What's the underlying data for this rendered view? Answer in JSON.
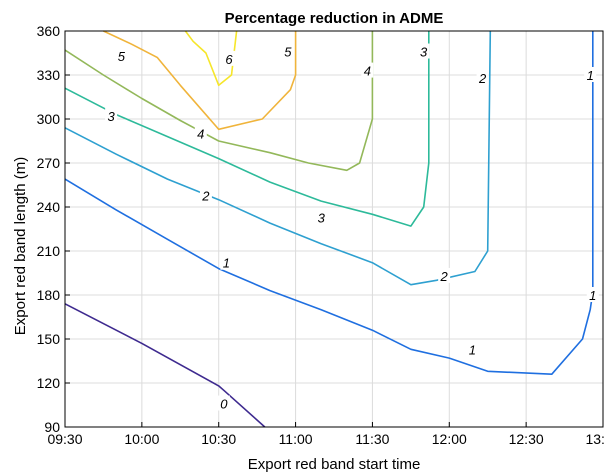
{
  "chart_data": {
    "type": "contour",
    "title": "Percentage reduction in ADME",
    "xlabel": "Export red band start time",
    "ylabel": "Export red band length (m)",
    "x_ticks": [
      "09:30",
      "10:00",
      "10:30",
      "11:00",
      "11:30",
      "12:00",
      "12:30",
      "13:00"
    ],
    "x_range_minutes": [
      570,
      780
    ],
    "y_ticks": [
      90,
      120,
      150,
      180,
      210,
      240,
      270,
      300,
      330,
      360
    ],
    "ylim": [
      90,
      360
    ],
    "grid": true,
    "contours": [
      {
        "level": "0",
        "color": "#3e2a8f",
        "points": [
          [
            570,
            174
          ],
          [
            600,
            147
          ],
          [
            630,
            118
          ],
          [
            632,
            115
          ],
          [
            648,
            90
          ]
        ],
        "label_at": [
          632,
          106
        ]
      },
      {
        "level": "1",
        "color": "#1f6fe0",
        "points": [
          [
            570,
            259
          ],
          [
            590,
            238
          ],
          [
            610,
            218
          ],
          [
            630,
            198
          ],
          [
            650,
            183
          ],
          [
            670,
            170
          ],
          [
            690,
            156
          ],
          [
            705,
            143
          ],
          [
            720,
            137
          ],
          [
            735,
            128
          ],
          [
            760,
            126
          ],
          [
            772,
            150
          ],
          [
            775,
            170
          ],
          [
            776,
            182
          ],
          [
            776,
            360
          ]
        ],
        "label_at": [
          [
            633,
            202
          ],
          [
            729,
            143
          ],
          [
            776,
            180
          ],
          [
            775,
            330
          ]
        ]
      },
      {
        "level": "2",
        "color": "#2ea0d0",
        "points": [
          [
            570,
            294
          ],
          [
            590,
            276
          ],
          [
            610,
            259
          ],
          [
            630,
            245
          ],
          [
            650,
            229
          ],
          [
            670,
            215
          ],
          [
            690,
            202
          ],
          [
            705,
            187
          ],
          [
            715,
            190
          ],
          [
            730,
            196
          ],
          [
            735,
            210
          ],
          [
            736,
            360
          ]
        ],
        "label_at": [
          [
            625,
            248
          ],
          [
            718,
            193
          ],
          [
            733,
            328
          ]
        ]
      },
      {
        "level": "3",
        "color": "#2dba9a",
        "points": [
          [
            570,
            321
          ],
          [
            590,
            303
          ],
          [
            610,
            288
          ],
          [
            630,
            273
          ],
          [
            650,
            257
          ],
          [
            670,
            244
          ],
          [
            690,
            235
          ],
          [
            705,
            227
          ],
          [
            710,
            240
          ],
          [
            712,
            270
          ],
          [
            712,
            360
          ]
        ],
        "label_at": [
          [
            588,
            302
          ],
          [
            670,
            233
          ],
          [
            710,
            346
          ]
        ]
      },
      {
        "level": "4",
        "color": "#93b85a",
        "points": [
          [
            570,
            347
          ],
          [
            585,
            330
          ],
          [
            600,
            314
          ],
          [
            615,
            299
          ],
          [
            630,
            285
          ],
          [
            650,
            277
          ],
          [
            665,
            270
          ],
          [
            680,
            265
          ],
          [
            685,
            270
          ],
          [
            690,
            300
          ],
          [
            690,
            360
          ]
        ],
        "label_at": [
          [
            623,
            290
          ],
          [
            688,
            333
          ]
        ]
      },
      {
        "level": "5",
        "color": "#f0b43b",
        "points": [
          [
            585,
            360
          ],
          [
            596,
            351
          ],
          [
            606,
            342
          ],
          [
            615,
            323
          ],
          [
            630,
            293
          ],
          [
            647,
            300
          ],
          [
            658,
            320
          ],
          [
            660,
            330
          ],
          [
            660,
            360
          ]
        ],
        "label_at": [
          [
            592,
            343
          ],
          [
            657,
            346
          ]
        ]
      },
      {
        "level": "6",
        "color": "#f6e62a",
        "points": [
          [
            617,
            360
          ],
          [
            620,
            353
          ],
          [
            625,
            345
          ],
          [
            630,
            323
          ],
          [
            635,
            330
          ],
          [
            637,
            360
          ]
        ],
        "label_at": [
          [
            634,
            341
          ]
        ]
      }
    ]
  }
}
